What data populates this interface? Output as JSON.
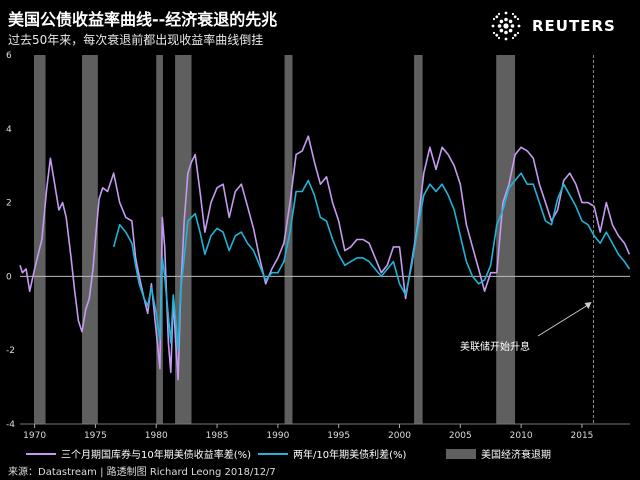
{
  "header": {
    "title": "美国公债收益率曲线--经济衰退的先兆",
    "subtitle": "过去50年来，每次衰退前都出现收益率曲线倒挂",
    "brand": "REUTERS"
  },
  "legend": {
    "series1_label": "三个月期国库券与10年期美债收益率差(%)",
    "series2_label": "两年/10年期美债利差(%)",
    "recession_label": "美国经济衰退期"
  },
  "source": "来源：Datastream | 路透制图 Richard Leong 2018/12/7",
  "colors": {
    "series1": "#c49bf0",
    "series2": "#1fb3d8",
    "recession": "#5f5f5f",
    "background": "#000000"
  },
  "chart_data": {
    "type": "line",
    "xlim": [
      1968.8,
      2018.95
    ],
    "ylim": [
      -4,
      6
    ],
    "x_ticks": [
      1970,
      1975,
      1980,
      1985,
      1990,
      1995,
      2000,
      2005,
      2010,
      2015
    ],
    "y_ticks": [
      -4,
      -2,
      0,
      2,
      4,
      6
    ],
    "y_tick_labels": [
      "-4",
      "-2",
      "0",
      "2",
      "4",
      "6"
    ],
    "recessions": [
      [
        1969.95,
        1970.9
      ],
      [
        1973.9,
        1975.2
      ],
      [
        1980.0,
        1980.55
      ],
      [
        1981.55,
        1982.9
      ],
      [
        1990.55,
        1991.2
      ],
      [
        2001.2,
        2001.9
      ],
      [
        2007.95,
        2009.5
      ]
    ],
    "annotation": {
      "text": "美联储开始升息",
      "x": 2015.95
    },
    "series": [
      {
        "name": "三个月期国库券与10年期美债收益率差(%)",
        "x": [
          1968.8,
          1969.0,
          1969.3,
          1969.6,
          1970.0,
          1970.3,
          1970.6,
          1971.0,
          1971.3,
          1971.6,
          1972.0,
          1972.3,
          1972.6,
          1973.0,
          1973.3,
          1973.6,
          1973.9,
          1974.2,
          1974.5,
          1974.8,
          1975.0,
          1975.3,
          1975.6,
          1976.0,
          1976.5,
          1977.0,
          1977.5,
          1978.0,
          1978.3,
          1978.6,
          1979.0,
          1979.3,
          1979.6,
          1980.0,
          1980.3,
          1980.5,
          1980.7,
          1981.0,
          1981.2,
          1981.4,
          1981.6,
          1981.8,
          1982.0,
          1982.3,
          1982.6,
          1982.9,
          1983.2,
          1983.6,
          1984.0,
          1984.5,
          1985.0,
          1985.5,
          1986.0,
          1986.5,
          1987.0,
          1987.5,
          1988.0,
          1988.5,
          1989.0,
          1989.5,
          1990.0,
          1990.5,
          1991.0,
          1991.5,
          1992.0,
          1992.5,
          1993.0,
          1993.5,
          1994.0,
          1994.5,
          1995.0,
          1995.5,
          1996.0,
          1996.5,
          1997.0,
          1997.5,
          1998.0,
          1998.5,
          1999.0,
          1999.5,
          2000.0,
          2000.5,
          2001.0,
          2001.5,
          2002.0,
          2002.5,
          2003.0,
          2003.5,
          2004.0,
          2004.5,
          2005.0,
          2005.5,
          2006.0,
          2006.5,
          2007.0,
          2007.5,
          2008.0,
          2008.5,
          2009.0,
          2009.5,
          2010.0,
          2010.5,
          2011.0,
          2011.5,
          2012.0,
          2012.5,
          2013.0,
          2013.5,
          2014.0,
          2014.5,
          2015.0,
          2015.5,
          2016.0,
          2016.5,
          2017.0,
          2017.5,
          2018.0,
          2018.5,
          2018.9
        ],
        "values": [
          0.3,
          0.1,
          0.2,
          -0.4,
          0.2,
          0.6,
          1.0,
          2.4,
          3.2,
          2.6,
          1.8,
          2.0,
          1.6,
          0.5,
          -0.4,
          -1.2,
          -1.5,
          -0.9,
          -0.6,
          0.2,
          1.0,
          2.1,
          2.4,
          2.3,
          2.8,
          2.0,
          1.6,
          1.5,
          0.5,
          0.0,
          -0.6,
          -1.0,
          -0.2,
          -1.5,
          -2.5,
          1.6,
          0.8,
          -1.8,
          -2.6,
          -0.6,
          -1.8,
          -2.8,
          -0.5,
          1.5,
          2.8,
          3.1,
          3.3,
          2.3,
          1.2,
          2.0,
          2.4,
          2.5,
          1.6,
          2.3,
          2.5,
          1.9,
          1.3,
          0.5,
          -0.2,
          0.2,
          0.5,
          0.9,
          2.0,
          3.3,
          3.4,
          3.8,
          3.1,
          2.5,
          2.7,
          2.0,
          1.5,
          0.7,
          0.8,
          1.0,
          1.0,
          0.9,
          0.5,
          0.1,
          0.3,
          0.8,
          0.8,
          -0.6,
          0.4,
          1.4,
          2.8,
          3.5,
          2.9,
          3.5,
          3.3,
          3.0,
          2.5,
          1.4,
          0.8,
          0.2,
          -0.4,
          0.1,
          0.1,
          2.0,
          2.5,
          3.3,
          3.5,
          3.4,
          3.2,
          2.5,
          2.0,
          1.5,
          1.8,
          2.6,
          2.8,
          2.5,
          2.0,
          2.0,
          1.9,
          1.2,
          2.0,
          1.4,
          1.1,
          0.9,
          0.6
        ]
      },
      {
        "name": "两年/10年期美债利差(%)",
        "x": [
          1976.5,
          1977.0,
          1977.5,
          1978.0,
          1978.3,
          1978.6,
          1979.0,
          1979.3,
          1979.6,
          1980.0,
          1980.3,
          1980.5,
          1980.7,
          1981.0,
          1981.2,
          1981.4,
          1981.6,
          1981.8,
          1982.0,
          1982.3,
          1982.6,
          1982.9,
          1983.2,
          1983.6,
          1984.0,
          1984.5,
          1985.0,
          1985.5,
          1986.0,
          1986.5,
          1987.0,
          1987.5,
          1988.0,
          1988.5,
          1989.0,
          1989.5,
          1990.0,
          1990.5,
          1991.0,
          1991.5,
          1992.0,
          1992.5,
          1993.0,
          1993.5,
          1994.0,
          1994.5,
          1995.0,
          1995.5,
          1996.0,
          1996.5,
          1997.0,
          1997.5,
          1998.0,
          1998.5,
          1999.0,
          1999.5,
          2000.0,
          2000.5,
          2001.0,
          2001.5,
          2002.0,
          2002.5,
          2003.0,
          2003.5,
          2004.0,
          2004.5,
          2005.0,
          2005.5,
          2006.0,
          2006.5,
          2007.0,
          2007.5,
          2008.0,
          2008.5,
          2009.0,
          2009.5,
          2010.0,
          2010.5,
          2011.0,
          2011.5,
          2012.0,
          2012.5,
          2013.0,
          2013.5,
          2014.0,
          2014.5,
          2015.0,
          2015.5,
          2016.0,
          2016.5,
          2017.0,
          2017.5,
          2018.0,
          2018.5,
          2018.9
        ],
        "values": [
          0.8,
          1.4,
          1.2,
          0.9,
          0.3,
          -0.2,
          -0.6,
          -0.8,
          -0.3,
          -1.0,
          -1.7,
          0.5,
          0.0,
          -1.1,
          -1.8,
          -0.5,
          -1.2,
          -2.0,
          -0.4,
          0.5,
          1.5,
          1.6,
          1.7,
          1.2,
          0.6,
          1.1,
          1.3,
          1.2,
          0.7,
          1.1,
          1.2,
          0.9,
          0.7,
          0.3,
          -0.1,
          0.1,
          0.1,
          0.4,
          1.2,
          2.3,
          2.3,
          2.6,
          2.2,
          1.6,
          1.5,
          1.0,
          0.6,
          0.3,
          0.4,
          0.5,
          0.5,
          0.4,
          0.2,
          0.0,
          0.2,
          0.4,
          -0.2,
          -0.5,
          0.3,
          1.3,
          2.2,
          2.5,
          2.3,
          2.5,
          2.2,
          1.8,
          1.1,
          0.4,
          0.0,
          -0.2,
          -0.1,
          0.3,
          1.4,
          1.8,
          2.4,
          2.6,
          2.8,
          2.5,
          2.5,
          2.0,
          1.5,
          1.4,
          2.1,
          2.5,
          2.2,
          1.9,
          1.5,
          1.4,
          1.1,
          0.9,
          1.2,
          0.9,
          0.6,
          0.4,
          0.2
        ]
      }
    ]
  }
}
